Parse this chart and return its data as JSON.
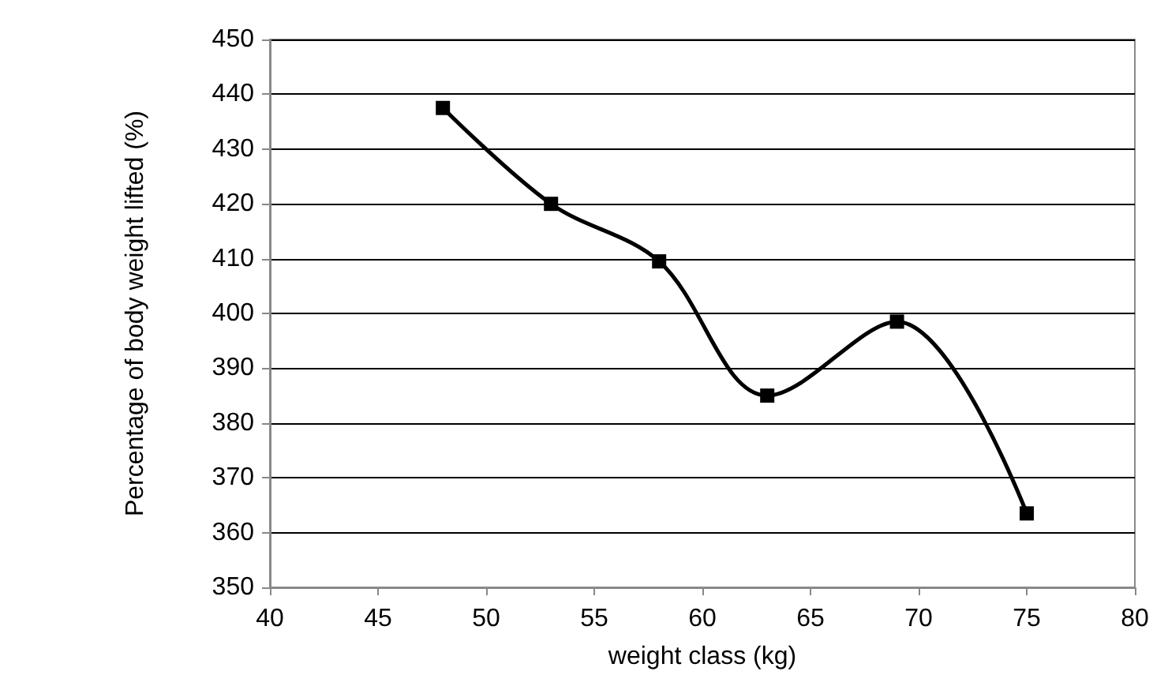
{
  "chart_data": {
    "type": "line",
    "xlabel": "weight class (kg)",
    "ylabel": "Percentage of body weight lifted (%)",
    "x": [
      48,
      53,
      58,
      63,
      69,
      75
    ],
    "series": [
      {
        "color": "#000000",
        "values": [
          437.5,
          420,
          409.5,
          385,
          398.5,
          363.5
        ]
      }
    ],
    "xlim": [
      40,
      80
    ],
    "xticks": [
      40,
      45,
      50,
      55,
      60,
      65,
      70,
      75,
      80
    ],
    "ylim": [
      350,
      450
    ],
    "yticks": [
      350,
      360,
      370,
      380,
      390,
      400,
      410,
      420,
      430,
      440,
      450
    ],
    "grid": "y",
    "marker": "square",
    "line_style": "solid"
  }
}
